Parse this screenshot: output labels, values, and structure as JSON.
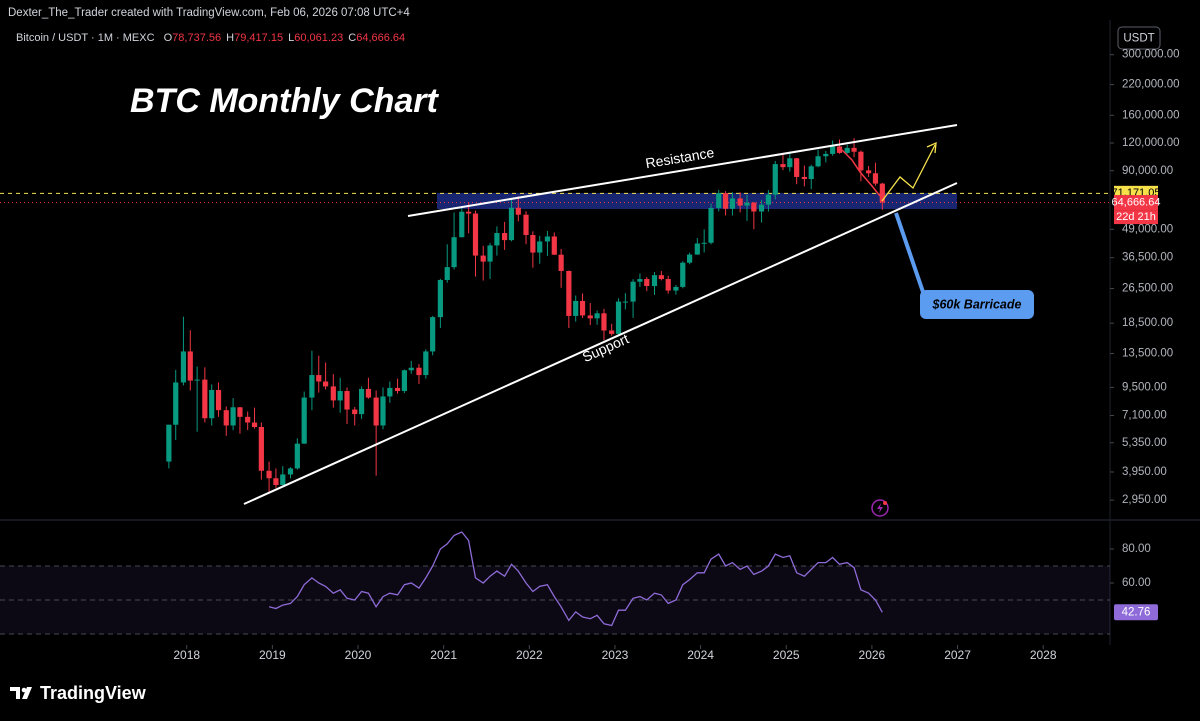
{
  "header": {
    "attribution": "Dexter_The_Trader created with TradingView.com, Feb 06, 2026 07:08 UTC+4",
    "symbol": "Bitcoin / USDT · 1M · MEXC",
    "ohlc": [
      {
        "key": "O",
        "value": "78,737.56"
      },
      {
        "key": "H",
        "value": "79,417.15"
      },
      {
        "key": "L",
        "value": "60,061.23"
      },
      {
        "key": "C",
        "value": "64,666.64"
      }
    ],
    "currency": "USDT",
    "logo": "TradingView"
  },
  "chart_data": {
    "type": "candlestick",
    "title": "BTC Monthly Chart",
    "log_scale": true,
    "up_color": "#089981",
    "down_color": "#f23645",
    "annotations": [
      "Resistance",
      "Support",
      "$60k Barricade"
    ],
    "x": [
      2017.75,
      2017.83,
      2017.92,
      2018.0,
      2018.08,
      2018.17,
      2018.25,
      2018.33,
      2018.42,
      2018.5,
      2018.58,
      2018.67,
      2018.75,
      2018.83,
      2018.92,
      2019.0,
      2019.08,
      2019.17,
      2019.25,
      2019.33,
      2019.42,
      2019.5,
      2019.58,
      2019.67,
      2019.75,
      2019.83,
      2019.92,
      2020.0,
      2020.08,
      2020.17,
      2020.25,
      2020.33,
      2020.42,
      2020.5,
      2020.58,
      2020.67,
      2020.75,
      2020.83,
      2020.92,
      2021.0,
      2021.08,
      2021.17,
      2021.25,
      2021.33,
      2021.42,
      2021.5,
      2021.58,
      2021.67,
      2021.75,
      2021.83,
      2021.92,
      2022.0,
      2022.08,
      2022.17,
      2022.25,
      2022.33,
      2022.42,
      2022.5,
      2022.58,
      2022.67,
      2022.75,
      2022.83,
      2022.92,
      2023.0,
      2023.08,
      2023.17,
      2023.25,
      2023.33,
      2023.42,
      2023.5,
      2023.58,
      2023.67,
      2023.75,
      2023.83,
      2023.92,
      2024.0,
      2024.08,
      2024.17,
      2024.25,
      2024.33,
      2024.42,
      2024.5,
      2024.58,
      2024.67,
      2024.75,
      2024.83,
      2024.92,
      2025.0,
      2025.08,
      2025.17,
      2025.25,
      2025.33,
      2025.42,
      2025.5,
      2025.58,
      2025.67,
      2025.75,
      2025.83,
      2025.92,
      2026.0,
      2026.08
    ],
    "open": [
      4400,
      6450,
      10000,
      13800,
      10200,
      10300,
      6900,
      9250,
      7500,
      6400,
      7730,
      7000,
      6600,
      6300,
      4000,
      3700,
      3450,
      3850,
      4100,
      5300,
      8550,
      10800,
      10100,
      9600,
      8300,
      9150,
      7550,
      7200,
      9350,
      8550,
      6400,
      8650,
      9450,
      9150,
      11350,
      11650,
      10800,
      13800,
      19700,
      28950,
      33100,
      45150,
      58800,
      57700,
      37300,
      35050,
      41450,
      47150,
      43800,
      61300,
      57000,
      46200,
      38500,
      43200,
      45500,
      37650,
      31800,
      19950,
      23300,
      20050,
      19450,
      20500,
      17150,
      16550,
      23150,
      23150,
      28450,
      29250,
      27200,
      30450,
      29250,
      25950,
      26950,
      34650,
      37700,
      42300,
      42600,
      61150,
      71300,
      60650,
      67500,
      62700,
      64600,
      58950,
      63300,
      70200,
      96400,
      93400,
      102400,
      84350,
      82550,
      94200,
      104600,
      107150,
      115750,
      108250,
      114050,
      109600,
      90350,
      87650,
      78737.56
    ],
    "high": [
      6450,
      11400,
      19800,
      17200,
      11800,
      11700,
      9800,
      10000,
      7800,
      8500,
      7750,
      7400,
      7700,
      6600,
      4400,
      4100,
      4200,
      4150,
      5600,
      9100,
      13900,
      13200,
      12300,
      10900,
      10500,
      9500,
      7750,
      9600,
      10500,
      9200,
      9500,
      10100,
      10400,
      11450,
      12500,
      12100,
      14100,
      19950,
      29300,
      41950,
      58350,
      61800,
      64850,
      59500,
      41300,
      42450,
      50500,
      52950,
      67000,
      69000,
      59100,
      48000,
      45800,
      48200,
      47450,
      40000,
      31950,
      24650,
      25200,
      22800,
      21100,
      21450,
      18400,
      23950,
      25250,
      29200,
      31000,
      29850,
      31450,
      31800,
      30250,
      27500,
      35200,
      38450,
      44750,
      48950,
      63950,
      73750,
      72800,
      71950,
      71950,
      70000,
      65100,
      66500,
      73600,
      99600,
      108350,
      109600,
      102750,
      95000,
      95750,
      111900,
      110500,
      123200,
      124450,
      117900,
      126200,
      111000,
      94600,
      97900,
      79417.15
    ],
    "low": [
      4100,
      5500,
      9700,
      9200,
      6000,
      6600,
      6400,
      7000,
      5750,
      6100,
      5880,
      6100,
      6200,
      3650,
      3150,
      3350,
      3380,
      3700,
      4050,
      5300,
      7500,
      9000,
      9300,
      7700,
      7300,
      6500,
      6400,
      6850,
      8450,
      3800,
      6150,
      8100,
      8900,
      8950,
      10950,
      9850,
      10400,
      13250,
      17600,
      28150,
      32300,
      45000,
      47000,
      30000,
      28800,
      29300,
      37300,
      39600,
      43300,
      53250,
      42000,
      32900,
      34300,
      37150,
      37600,
      26700,
      17600,
      18800,
      19550,
      18150,
      18200,
      15500,
      16250,
      16500,
      21350,
      19550,
      26950,
      25800,
      24800,
      28850,
      25150,
      24900,
      26550,
      34100,
      37600,
      38550,
      41900,
      59000,
      56550,
      56500,
      58400,
      53500,
      49050,
      52550,
      58900,
      66800,
      90500,
      89150,
      78250,
      76550,
      74400,
      93350,
      98200,
      105100,
      107250,
      107250,
      103500,
      80600,
      84400,
      77000,
      60061.23
    ],
    "close": [
      6450,
      10000,
      13800,
      10200,
      10300,
      6900,
      9250,
      7500,
      6400,
      7730,
      7000,
      6600,
      6300,
      4000,
      3700,
      3450,
      3850,
      4100,
      5300,
      8550,
      10800,
      10100,
      9600,
      8300,
      9150,
      7550,
      7200,
      9350,
      8550,
      6400,
      8650,
      9450,
      9150,
      11350,
      11650,
      10800,
      13800,
      19700,
      28950,
      33100,
      45150,
      58800,
      57700,
      37300,
      35050,
      41450,
      47150,
      43800,
      61300,
      57000,
      46200,
      38500,
      43200,
      45500,
      37650,
      31800,
      19950,
      23300,
      20050,
      19450,
      20500,
      17150,
      16550,
      23150,
      23150,
      28450,
      29250,
      27200,
      30450,
      29250,
      25950,
      26950,
      34650,
      37700,
      42300,
      42600,
      61150,
      71300,
      60650,
      67500,
      62700,
      64600,
      58950,
      63300,
      70200,
      96400,
      93400,
      102400,
      84350,
      82550,
      94200,
      104600,
      107150,
      115750,
      108250,
      114050,
      109600,
      90350,
      87650,
      78737.56,
      64666.64
    ],
    "xlim": [
      2015.82,
      2028.78
    ],
    "xticks": [
      2018,
      2019,
      2020,
      2021,
      2022,
      2023,
      2024,
      2025,
      2026,
      2027,
      2028
    ],
    "ylim": [
      2400,
      430000
    ],
    "yticks": [
      {
        "value": 2950,
        "label": "2,950.00"
      },
      {
        "value": 3950,
        "label": "3,950.00"
      },
      {
        "value": 5350,
        "label": "5,350.00"
      },
      {
        "value": 7100,
        "label": "7,100.00"
      },
      {
        "value": 9500,
        "label": "9,500.00"
      },
      {
        "value": 13500,
        "label": "13,500.00"
      },
      {
        "value": 18500,
        "label": "18,500.00"
      },
      {
        "value": 26500,
        "label": "26,500.00"
      },
      {
        "value": 36500,
        "label": "36,500.00"
      },
      {
        "value": 49000,
        "label": "49,000.00"
      },
      {
        "value": 90000,
        "label": "90,000.00"
      },
      {
        "value": 120000,
        "label": "120,000.00"
      },
      {
        "value": 160000,
        "label": "160,000.00"
      },
      {
        "value": 220000,
        "label": "220,000.00"
      },
      {
        "value": 300000,
        "label": "300,000.00"
      }
    ],
    "price_lines": [
      {
        "value": 71171.05,
        "label": "71,171.05",
        "color": "#f7e14b"
      },
      {
        "value": 64666.64,
        "label": "64,666.64",
        "color": "#f23645",
        "countdown": "22d 21h"
      }
    ],
    "rsi": {
      "color": "#8e6bd8",
      "band": [
        30,
        70
      ],
      "midline": 50,
      "ylim": [
        23.53,
        95.88
      ],
      "yticks": [
        {
          "value": 80,
          "label": "80.00"
        },
        {
          "value": 60,
          "label": "60.00"
        }
      ],
      "values": [
        null,
        null,
        null,
        null,
        null,
        null,
        null,
        null,
        null,
        null,
        null,
        null,
        null,
        null,
        46,
        45,
        47,
        48,
        52,
        59,
        63,
        60,
        58,
        54,
        56,
        51,
        50,
        55,
        54,
        46,
        52,
        54,
        53,
        59,
        60,
        57,
        63,
        70,
        80,
        83,
        88,
        90,
        85,
        63,
        60,
        64,
        67,
        64,
        71,
        67,
        60,
        55,
        58,
        59,
        52,
        46,
        38,
        43,
        40,
        39,
        41,
        36,
        35,
        44,
        44,
        51,
        52,
        50,
        54,
        53,
        48,
        50,
        59,
        62,
        66,
        66,
        74,
        77,
        70,
        72,
        68,
        70,
        65,
        67,
        70,
        77,
        75,
        76,
        66,
        64,
        68,
        72,
        72,
        75,
        71,
        72,
        69,
        56,
        54,
        50,
        42.76
      ]
    }
  }
}
